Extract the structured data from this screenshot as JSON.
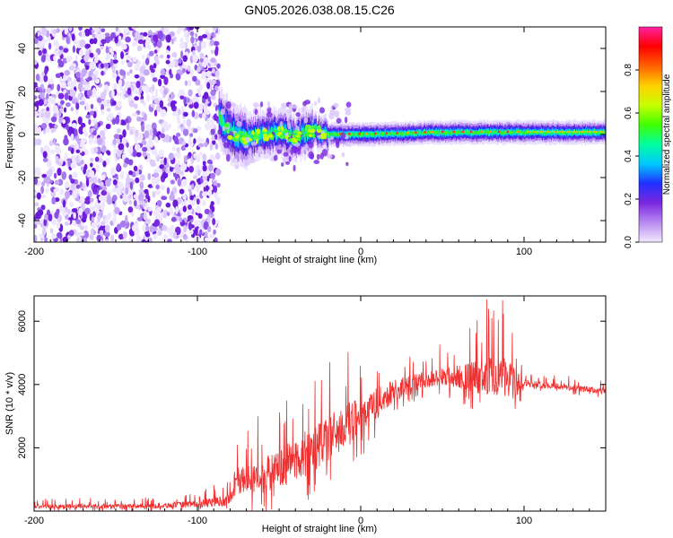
{
  "title": "GN05.2026.038.08.15.C26",
  "chart_data": [
    {
      "type": "heatmap",
      "name": "spectrogram",
      "xlabel": "Height of straight line (km)",
      "ylabel": "Frequency (Hz)",
      "xlim": [
        -200,
        150
      ],
      "ylim": [
        -50,
        50
      ],
      "xticks": [
        -200,
        -100,
        0,
        100
      ],
      "yticks": [
        -40,
        -20,
        0,
        20,
        40
      ],
      "noise_region_x": [
        -200,
        -87
      ],
      "signal_start_x": -87,
      "centerline": [
        [
          -87,
          8
        ],
        [
          -80,
          1
        ],
        [
          -70,
          -2
        ],
        [
          -60,
          0
        ],
        [
          -50,
          1
        ],
        [
          -40,
          -1
        ],
        [
          -30,
          2
        ],
        [
          -20,
          0
        ],
        [
          0,
          0
        ],
        [
          50,
          1
        ],
        [
          90,
          1
        ],
        [
          150,
          1
        ]
      ],
      "colorbar": {
        "label": "Normalized spectral amplitude",
        "range": [
          0,
          1
        ],
        "ticks": [
          0.0,
          0.2,
          0.4,
          0.6,
          0.8
        ],
        "colors": [
          "#f2e8ff",
          "#b88af0",
          "#7a28e0",
          "#2030ff",
          "#00c8ff",
          "#00ffa0",
          "#40ff00",
          "#c8ff00",
          "#ffd000",
          "#ff6000",
          "#ff0000",
          "#ff20a0"
        ]
      }
    },
    {
      "type": "line",
      "name": "snr",
      "xlabel": "Height of straight line (km)",
      "ylabel": "SNR (10 * v/v)",
      "xlim": [
        -200,
        150
      ],
      "ylim": [
        0,
        6800
      ],
      "xticks": [
        -200,
        -100,
        0,
        100
      ],
      "yticks": [
        2000,
        4000,
        6000
      ],
      "color": "#ef3030",
      "envelope_x": [
        -200,
        -130,
        -100,
        -80,
        -78,
        -60,
        -40,
        -20,
        0,
        20,
        40,
        60,
        80,
        95,
        100,
        120,
        150
      ],
      "envelope_y": [
        150,
        160,
        220,
        350,
        900,
        1100,
        1600,
        2300,
        3000,
        3800,
        4150,
        4250,
        4250,
        4200,
        4050,
        3950,
        3780
      ],
      "noise_amp": [
        100,
        110,
        150,
        280,
        650,
        800,
        1000,
        1100,
        900,
        500,
        400,
        550,
        900,
        1000,
        160,
        150,
        140
      ]
    }
  ]
}
